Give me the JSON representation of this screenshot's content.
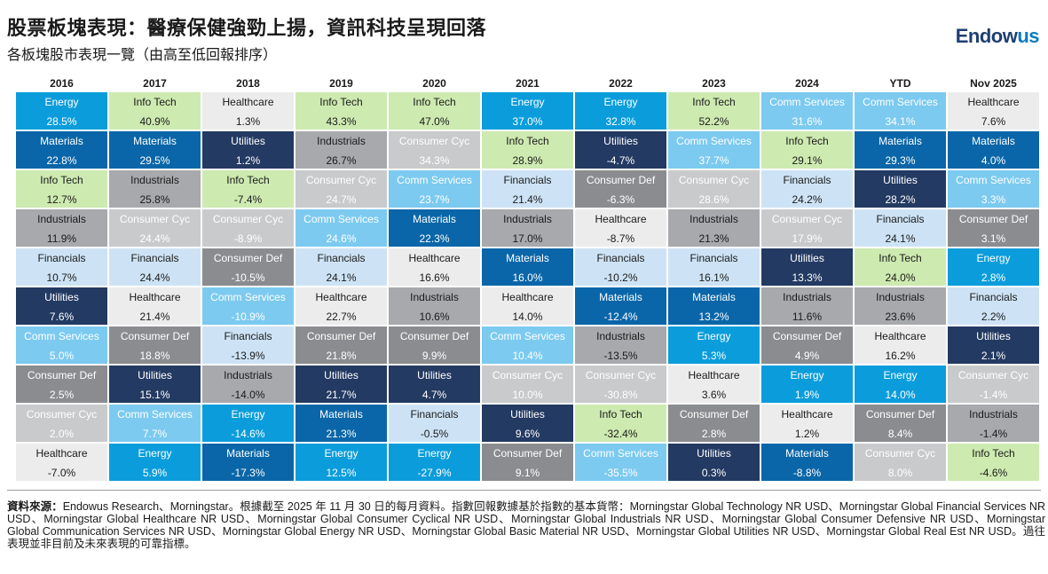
{
  "header": {
    "title": "股票板塊表現：醫療保健強勁上揚，資訊科技呈現回落",
    "subtitle": "各板塊股市表現一覽（由高至低回報排序）",
    "logo_main": "Endow",
    "logo_accent": "us"
  },
  "colors": {
    "Energy": {
      "bg": "#0b9ddb",
      "fg": "#ffffff"
    },
    "Materials": {
      "bg": "#0a66a8",
      "fg": "#ffffff"
    },
    "Info Tech": {
      "bg": "#cdeab0",
      "fg": "#1a1a1a"
    },
    "Industrials": {
      "bg": "#a7a9ac",
      "fg": "#1a1a1a"
    },
    "Financials": {
      "bg": "#cde3f5",
      "fg": "#1a1a1a"
    },
    "Utilities": {
      "bg": "#233a62",
      "fg": "#ffffff"
    },
    "Comm Services": {
      "bg": "#7ccaf0",
      "fg": "#ffffff"
    },
    "Consumer Def": {
      "bg": "#8a8c8f",
      "fg": "#ffffff"
    },
    "Consumer Cyc": {
      "bg": "#c9cacc",
      "fg": "#ffffff"
    },
    "Healthcare": {
      "bg": "#ececec",
      "fg": "#1a1a1a"
    }
  },
  "chart_data": {
    "type": "table",
    "title": "股票板塊表現：醫療保健強勁上揚，資訊科技呈現回落",
    "subtitle": "各板塊股市表現一覽（由高至低回報排序）",
    "columns": [
      {
        "period": "2016",
        "cells": [
          {
            "sector": "Energy",
            "value": "28.5%"
          },
          {
            "sector": "Materials",
            "value": "22.8%"
          },
          {
            "sector": "Info Tech",
            "value": "12.7%"
          },
          {
            "sector": "Industrials",
            "value": "11.9%"
          },
          {
            "sector": "Financials",
            "value": "10.7%"
          },
          {
            "sector": "Utilities",
            "value": "7.6%"
          },
          {
            "sector": "Comm Services",
            "value": "5.0%"
          },
          {
            "sector": "Consumer Def",
            "value": "2.5%"
          },
          {
            "sector": "Consumer Cyc",
            "value": "2.0%"
          },
          {
            "sector": "Healthcare",
            "value": "-7.0%"
          }
        ]
      },
      {
        "period": "2017",
        "cells": [
          {
            "sector": "Info Tech",
            "value": "40.9%"
          },
          {
            "sector": "Materials",
            "value": "29.5%"
          },
          {
            "sector": "Industrials",
            "value": "25.8%"
          },
          {
            "sector": "Consumer Cyc",
            "value": "24.4%"
          },
          {
            "sector": "Financials",
            "value": "24.4%"
          },
          {
            "sector": "Healthcare",
            "value": "21.4%"
          },
          {
            "sector": "Consumer Def",
            "value": "18.8%"
          },
          {
            "sector": "Utilities",
            "value": "15.1%"
          },
          {
            "sector": "Comm Services",
            "value": "7.7%"
          },
          {
            "sector": "Energy",
            "value": "5.9%"
          }
        ]
      },
      {
        "period": "2018",
        "cells": [
          {
            "sector": "Healthcare",
            "value": "1.3%"
          },
          {
            "sector": "Utilities",
            "value": "1.2%"
          },
          {
            "sector": "Info Tech",
            "value": "-7.4%"
          },
          {
            "sector": "Consumer Cyc",
            "value": "-8.9%"
          },
          {
            "sector": "Consumer Def",
            "value": "-10.5%"
          },
          {
            "sector": "Comm Services",
            "value": "-10.9%"
          },
          {
            "sector": "Financials",
            "value": "-13.9%"
          },
          {
            "sector": "Industrials",
            "value": "-14.0%"
          },
          {
            "sector": "Energy",
            "value": "-14.6%"
          },
          {
            "sector": "Materials",
            "value": "-17.3%"
          }
        ]
      },
      {
        "period": "2019",
        "cells": [
          {
            "sector": "Info Tech",
            "value": "43.3%"
          },
          {
            "sector": "Industrials",
            "value": "26.7%"
          },
          {
            "sector": "Consumer Cyc",
            "value": "24.7%"
          },
          {
            "sector": "Comm Services",
            "value": "24.6%"
          },
          {
            "sector": "Financials",
            "value": "24.1%"
          },
          {
            "sector": "Healthcare",
            "value": "22.7%"
          },
          {
            "sector": "Consumer Def",
            "value": "21.8%"
          },
          {
            "sector": "Utilities",
            "value": "21.7%"
          },
          {
            "sector": "Materials",
            "value": "21.3%"
          },
          {
            "sector": "Energy",
            "value": "12.5%"
          }
        ]
      },
      {
        "period": "2020",
        "cells": [
          {
            "sector": "Info Tech",
            "value": "47.0%"
          },
          {
            "sector": "Consumer Cyc",
            "value": "34.3%"
          },
          {
            "sector": "Comm Services",
            "value": "23.7%"
          },
          {
            "sector": "Materials",
            "value": "22.3%"
          },
          {
            "sector": "Healthcare",
            "value": "16.6%"
          },
          {
            "sector": "Industrials",
            "value": "10.6%"
          },
          {
            "sector": "Consumer Def",
            "value": "9.9%"
          },
          {
            "sector": "Utilities",
            "value": "4.7%"
          },
          {
            "sector": "Financials",
            "value": "-0.5%"
          },
          {
            "sector": "Energy",
            "value": "-27.9%"
          }
        ]
      },
      {
        "period": "2021",
        "cells": [
          {
            "sector": "Energy",
            "value": "37.0%"
          },
          {
            "sector": "Info Tech",
            "value": "28.9%"
          },
          {
            "sector": "Financials",
            "value": "21.4%"
          },
          {
            "sector": "Industrials",
            "value": "17.0%"
          },
          {
            "sector": "Materials",
            "value": "16.0%"
          },
          {
            "sector": "Healthcare",
            "value": "14.0%"
          },
          {
            "sector": "Comm Services",
            "value": "10.4%"
          },
          {
            "sector": "Consumer Cyc",
            "value": "10.0%"
          },
          {
            "sector": "Utilities",
            "value": "9.6%"
          },
          {
            "sector": "Consumer Def",
            "value": "9.1%"
          }
        ]
      },
      {
        "period": "2022",
        "cells": [
          {
            "sector": "Energy",
            "value": "32.8%"
          },
          {
            "sector": "Utilities",
            "value": "-4.7%"
          },
          {
            "sector": "Consumer Def",
            "value": "-6.3%"
          },
          {
            "sector": "Healthcare",
            "value": "-8.7%"
          },
          {
            "sector": "Financials",
            "value": "-10.2%"
          },
          {
            "sector": "Materials",
            "value": "-12.4%"
          },
          {
            "sector": "Industrials",
            "value": "-13.5%"
          },
          {
            "sector": "Consumer Cyc",
            "value": "-30.8%"
          },
          {
            "sector": "Info Tech",
            "value": "-32.4%"
          },
          {
            "sector": "Comm Services",
            "value": "-35.5%"
          }
        ]
      },
      {
        "period": "2023",
        "cells": [
          {
            "sector": "Info Tech",
            "value": "52.2%"
          },
          {
            "sector": "Comm Services",
            "value": "37.7%"
          },
          {
            "sector": "Consumer Cyc",
            "value": "28.6%"
          },
          {
            "sector": "Industrials",
            "value": "21.3%"
          },
          {
            "sector": "Financials",
            "value": "16.1%"
          },
          {
            "sector": "Materials",
            "value": "13.2%"
          },
          {
            "sector": "Energy",
            "value": "5.3%"
          },
          {
            "sector": "Healthcare",
            "value": "3.6%"
          },
          {
            "sector": "Consumer Def",
            "value": "2.8%"
          },
          {
            "sector": "Utilities",
            "value": "0.3%"
          }
        ]
      },
      {
        "period": "2024",
        "cells": [
          {
            "sector": "Comm Services",
            "value": "31.6%"
          },
          {
            "sector": "Info Tech",
            "value": "29.1%"
          },
          {
            "sector": "Financials",
            "value": "24.2%"
          },
          {
            "sector": "Consumer Cyc",
            "value": "17.9%"
          },
          {
            "sector": "Utilities",
            "value": "13.3%"
          },
          {
            "sector": "Industrials",
            "value": "11.6%"
          },
          {
            "sector": "Consumer Def",
            "value": "4.9%"
          },
          {
            "sector": "Energy",
            "value": "1.9%"
          },
          {
            "sector": "Healthcare",
            "value": "1.2%"
          },
          {
            "sector": "Materials",
            "value": "-8.8%"
          }
        ]
      },
      {
        "period": "YTD",
        "cells": [
          {
            "sector": "Comm Services",
            "value": "34.1%"
          },
          {
            "sector": "Materials",
            "value": "29.3%"
          },
          {
            "sector": "Utilities",
            "value": "28.2%"
          },
          {
            "sector": "Financials",
            "value": "24.1%"
          },
          {
            "sector": "Info Tech",
            "value": "24.0%"
          },
          {
            "sector": "Industrials",
            "value": "23.6%"
          },
          {
            "sector": "Healthcare",
            "value": "16.2%"
          },
          {
            "sector": "Energy",
            "value": "14.0%"
          },
          {
            "sector": "Consumer Def",
            "value": "8.4%"
          },
          {
            "sector": "Consumer Cyc",
            "value": "8.0%"
          }
        ]
      },
      {
        "period": "Nov 2025",
        "cells": [
          {
            "sector": "Healthcare",
            "value": "7.6%"
          },
          {
            "sector": "Materials",
            "value": "4.0%"
          },
          {
            "sector": "Comm Services",
            "value": "3.3%"
          },
          {
            "sector": "Consumer Def",
            "value": "3.1%"
          },
          {
            "sector": "Energy",
            "value": "2.8%"
          },
          {
            "sector": "Financials",
            "value": "2.2%"
          },
          {
            "sector": "Utilities",
            "value": "2.1%"
          },
          {
            "sector": "Consumer Cyc",
            "value": "-1.4%"
          },
          {
            "sector": "Industrials",
            "value": "-1.4%"
          },
          {
            "sector": "Info Tech",
            "value": "-4.6%"
          }
        ]
      }
    ]
  },
  "footnote": {
    "label": "資料來源：",
    "text": "Endowus Research、Morningstar。根據截至 2025 年 11 月 30 日的每月資料。指數回報數據基於指數的基本貨幣：Morningstar Global Technology NR USD、Morningstar Global Financial Services NR USD、Morningstar Global Healthcare NR USD、Morningstar Global Consumer Cyclical NR USD、Morningstar Global Industrials NR USD、Morningstar Global Consumer Defensive NR USD、Morningstar Global Communication Services NR USD、Morningstar Global Energy NR USD、Morningstar Global Basic Material NR USD、Morningstar Global Utilities NR USD、Morningstar Global Real Est NR USD。過往表現並非目前及未來表現的可靠指標。"
  }
}
